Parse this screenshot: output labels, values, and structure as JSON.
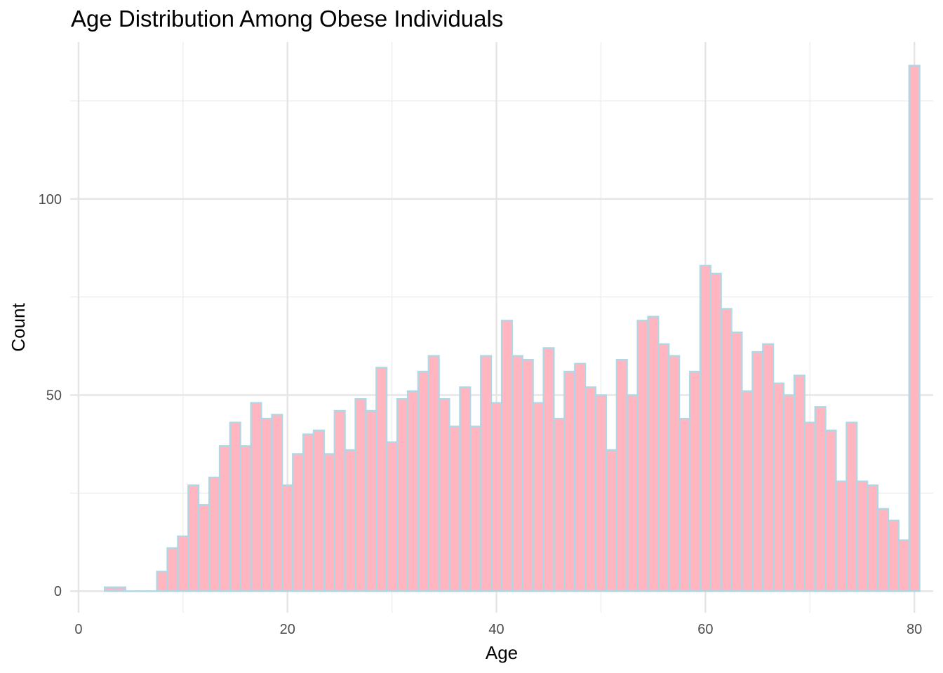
{
  "chart_data": {
    "type": "bar",
    "title": "Age Distribution Among Obese Individuals",
    "xlabel": "Age",
    "ylabel": "Count",
    "xlim": [
      -0.8,
      81.8
    ],
    "ylim": [
      -5.5,
      140
    ],
    "x_ticks": [
      0,
      20,
      40,
      60,
      80
    ],
    "y_ticks": [
      0,
      50,
      100
    ],
    "grid": true,
    "bin_width": 1.0,
    "fill_color": "#ffb6c1",
    "border_color": "#add8e6",
    "x": [
      3,
      4,
      5,
      6,
      7,
      8,
      9,
      10,
      11,
      12,
      13,
      14,
      15,
      16,
      17,
      18,
      19,
      20,
      21,
      22,
      23,
      24,
      25,
      26,
      27,
      28,
      29,
      30,
      31,
      32,
      33,
      34,
      35,
      36,
      37,
      38,
      39,
      40,
      41,
      42,
      43,
      44,
      45,
      46,
      47,
      48,
      49,
      50,
      51,
      52,
      53,
      54,
      55,
      56,
      57,
      58,
      59,
      60,
      61,
      62,
      63,
      64,
      65,
      66,
      67,
      68,
      69,
      70,
      71,
      72,
      73,
      74,
      75,
      76,
      77,
      78,
      79,
      80
    ],
    "values": [
      1,
      1,
      0,
      0,
      0,
      5,
      11,
      14,
      27,
      22,
      29,
      37,
      43,
      37,
      48,
      44,
      45,
      27,
      35,
      40,
      41,
      35,
      46,
      36,
      49,
      46,
      57,
      38,
      49,
      51,
      56,
      60,
      49,
      42,
      52,
      42,
      60,
      48,
      69,
      60,
      59,
      48,
      62,
      44,
      56,
      58,
      52,
      50,
      36,
      59,
      50,
      69,
      70,
      63,
      60,
      44,
      56,
      83,
      81,
      72,
      66,
      51,
      61,
      63,
      53,
      50,
      55,
      43,
      47,
      41,
      28,
      43,
      28,
      27,
      21,
      18,
      13,
      134
    ]
  }
}
